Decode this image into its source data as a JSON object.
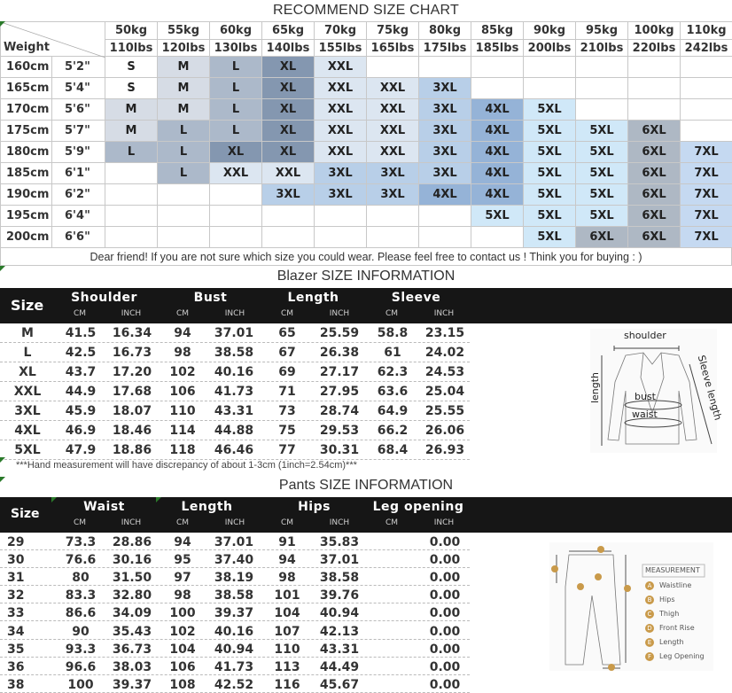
{
  "recommend": {
    "title": "RECOMMEND SIZE CHART",
    "corner_label": "Weight",
    "weights_kg": [
      "50kg",
      "55kg",
      "60kg",
      "65kg",
      "70kg",
      "75kg",
      "80kg",
      "85kg",
      "90kg",
      "95kg",
      "100kg",
      "110kg"
    ],
    "weights_lbs": [
      "110lbs",
      "120lbs",
      "130lbs",
      "140lbs",
      "155lbs",
      "165lbs",
      "175lbs",
      "185lbs",
      "200lbs",
      "210lbs",
      "220lbs",
      "242lbs"
    ],
    "rows": [
      {
        "cm": "160cm",
        "ft": "5'2\"",
        "sizes": [
          "S",
          "M",
          "L",
          "XL",
          "XXL",
          "",
          "",
          "",
          "",
          "",
          "",
          ""
        ]
      },
      {
        "cm": "165cm",
        "ft": "5'4\"",
        "sizes": [
          "S",
          "M",
          "L",
          "XL",
          "XXL",
          "XXL",
          "3XL",
          "",
          "",
          "",
          "",
          ""
        ]
      },
      {
        "cm": "170cm",
        "ft": "5'6\"",
        "sizes": [
          "M",
          "M",
          "L",
          "XL",
          "XXL",
          "XXL",
          "3XL",
          "4XL",
          "5XL",
          "",
          "",
          ""
        ]
      },
      {
        "cm": "175cm",
        "ft": "5'7\"",
        "sizes": [
          "M",
          "L",
          "L",
          "XL",
          "XXL",
          "XXL",
          "3XL",
          "4XL",
          "5XL",
          "5XL",
          "6XL",
          ""
        ]
      },
      {
        "cm": "180cm",
        "ft": "5'9\"",
        "sizes": [
          "L",
          "L",
          "XL",
          "XL",
          "XXL",
          "XXL",
          "3XL",
          "4XL",
          "5XL",
          "5XL",
          "6XL",
          "7XL"
        ]
      },
      {
        "cm": "185cm",
        "ft": "6'1\"",
        "sizes": [
          "",
          "L",
          "XXL",
          "XXL",
          "3XL",
          "3XL",
          "3XL",
          "4XL",
          "5XL",
          "5XL",
          "6XL",
          "7XL"
        ]
      },
      {
        "cm": "190cm",
        "ft": "6'2\"",
        "sizes": [
          "",
          "",
          "",
          "3XL",
          "3XL",
          "3XL",
          "4XL",
          "4XL",
          "5XL",
          "5XL",
          "6XL",
          "7XL"
        ]
      },
      {
        "cm": "195cm",
        "ft": "6'4\"",
        "sizes": [
          "",
          "",
          "",
          "",
          "",
          "",
          "",
          "5XL",
          "5XL",
          "5XL",
          "6XL",
          "7XL"
        ]
      },
      {
        "cm": "200cm",
        "ft": "6'6\"",
        "sizes": [
          "",
          "",
          "",
          "",
          "",
          "",
          "",
          "",
          "5XL",
          "6XL",
          "6XL",
          "7XL"
        ]
      }
    ],
    "note": "Dear friend! If you are not sure which size you could wear. Please feel free to contact us ! Think you for buying  : )",
    "size_colors": {
      "S": "#ffffff",
      "M": "#d6dce5",
      "L": "#acb9ca",
      "XL": "#8497b0",
      "XXL": "#dce6f1",
      "3XL": "#b8cfe8",
      "4XL": "#95b3d7",
      "5XL": "#d0e8f8",
      "6XL": "#aeb8c4",
      "7XL": "#c5d9f1"
    }
  },
  "blazer": {
    "title": "Blazer SIZE INFORMATION",
    "size_label": "Size",
    "groups": [
      "Shoulder",
      "Bust",
      "Length",
      "Sleeve"
    ],
    "units": [
      "CM",
      "INCH"
    ],
    "rows": [
      [
        "M",
        "41.5",
        "16.34",
        "94",
        "37.01",
        "65",
        "25.59",
        "58.8",
        "23.15"
      ],
      [
        "L",
        "42.5",
        "16.73",
        "98",
        "38.58",
        "67",
        "26.38",
        "61",
        "24.02"
      ],
      [
        "XL",
        "43.7",
        "17.20",
        "102",
        "40.16",
        "69",
        "27.17",
        "62.3",
        "24.53"
      ],
      [
        "XXL",
        "44.9",
        "17.68",
        "106",
        "41.73",
        "71",
        "27.95",
        "63.6",
        "25.04"
      ],
      [
        "3XL",
        "45.9",
        "18.07",
        "110",
        "43.31",
        "73",
        "28.74",
        "64.9",
        "25.55"
      ],
      [
        "4XL",
        "46.9",
        "18.46",
        "114",
        "44.88",
        "75",
        "29.53",
        "66.2",
        "26.06"
      ],
      [
        "5XL",
        "47.9",
        "18.86",
        "118",
        "46.46",
        "77",
        "30.31",
        "68.4",
        "26.93"
      ]
    ],
    "note": "***Hand measurement will have discrepancy of about 1-3cm (1inch=2.54cm)***",
    "diagram": {
      "shoulder": "shoulder",
      "length": "length",
      "bust": "bust",
      "waist": "waist",
      "sleeve": "Sleeve length"
    }
  },
  "pants": {
    "title": "Pants SIZE INFORMATION",
    "size_label": "Size",
    "groups": [
      "Waist",
      "Length",
      "Hips",
      "Leg opening"
    ],
    "units": [
      "CM",
      "INCH"
    ],
    "rows": [
      [
        "29",
        "73.3",
        "28.86",
        "94",
        "37.01",
        "91",
        "35.83",
        "",
        "0.00"
      ],
      [
        "30",
        "76.6",
        "30.16",
        "95",
        "37.40",
        "94",
        "37.01",
        "",
        "0.00"
      ],
      [
        "31",
        "80",
        "31.50",
        "97",
        "38.19",
        "98",
        "38.58",
        "",
        "0.00"
      ],
      [
        "32",
        "83.3",
        "32.80",
        "98",
        "38.58",
        "101",
        "39.76",
        "",
        "0.00"
      ],
      [
        "33",
        "86.6",
        "34.09",
        "100",
        "39.37",
        "104",
        "40.94",
        "",
        "0.00"
      ],
      [
        "34",
        "90",
        "35.43",
        "102",
        "40.16",
        "107",
        "42.13",
        "",
        "0.00"
      ],
      [
        "35",
        "93.3",
        "36.73",
        "104",
        "40.94",
        "110",
        "43.31",
        "",
        "0.00"
      ],
      [
        "36",
        "96.6",
        "38.03",
        "106",
        "41.73",
        "113",
        "44.49",
        "",
        "0.00"
      ],
      [
        "38",
        "100",
        "39.37",
        "108",
        "42.52",
        "116",
        "45.67",
        "",
        "0.00"
      ]
    ],
    "diagram": {
      "heading": "MEASUREMENT",
      "legend": [
        {
          "key": "A",
          "label": "Waistline"
        },
        {
          "key": "B",
          "label": "Hips"
        },
        {
          "key": "C",
          "label": "Thigh"
        },
        {
          "key": "D",
          "label": "Front Rise"
        },
        {
          "key": "E",
          "label": "Length"
        },
        {
          "key": "F",
          "label": "Leg Opening"
        }
      ]
    }
  }
}
